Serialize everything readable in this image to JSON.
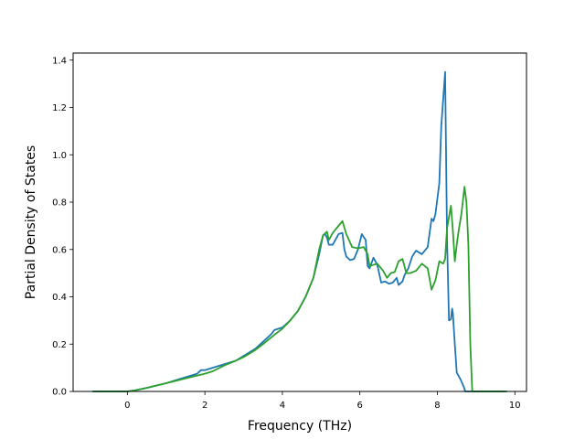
{
  "chart_data": {
    "type": "line",
    "title": "",
    "xlabel": "Frequency (THz)",
    "ylabel": "Partial Density of States",
    "xlim": [
      -1.4,
      10.3
    ],
    "ylim": [
      0.0,
      1.43
    ],
    "xticks": [
      0,
      2,
      4,
      6,
      8,
      10
    ],
    "yticks": [
      0.0,
      0.2,
      0.4,
      0.6,
      0.8,
      1.0,
      1.2,
      1.4
    ],
    "xtick_labels": [
      "0",
      "2",
      "4",
      "6",
      "8",
      "10"
    ],
    "ytick_labels": [
      "0.0",
      "0.2",
      "0.4",
      "0.6",
      "0.8",
      "1.0",
      "1.2",
      "1.4"
    ],
    "grid": false,
    "legend": false,
    "series": [
      {
        "color": "#1f77b4",
        "x": [
          -0.9,
          0.0,
          0.2,
          0.5,
          1.0,
          1.5,
          1.8,
          1.9,
          2.0,
          2.2,
          2.5,
          2.8,
          3.0,
          3.3,
          3.5,
          3.7,
          3.8,
          4.0,
          4.2,
          4.4,
          4.6,
          4.8,
          4.95,
          5.05,
          5.1,
          5.15,
          5.2,
          5.3,
          5.45,
          5.55,
          5.6,
          5.65,
          5.75,
          5.85,
          5.95,
          6.05,
          6.15,
          6.2,
          6.25,
          6.35,
          6.45,
          6.55,
          6.65,
          6.75,
          6.85,
          6.95,
          7.0,
          7.1,
          7.15,
          7.25,
          7.35,
          7.45,
          7.6,
          7.75,
          7.85,
          7.9,
          7.95,
          8.05,
          8.1,
          8.2,
          8.25,
          8.3,
          8.35,
          8.38,
          8.4,
          8.45,
          8.5,
          8.6,
          8.68,
          8.72,
          8.8,
          8.9,
          9.0,
          9.75
        ],
        "y": [
          0.0,
          0.0,
          0.005,
          0.015,
          0.035,
          0.06,
          0.075,
          0.09,
          0.09,
          0.1,
          0.115,
          0.13,
          0.15,
          0.18,
          0.21,
          0.24,
          0.26,
          0.27,
          0.3,
          0.34,
          0.4,
          0.48,
          0.58,
          0.66,
          0.665,
          0.65,
          0.62,
          0.62,
          0.665,
          0.67,
          0.6,
          0.57,
          0.555,
          0.56,
          0.6,
          0.665,
          0.64,
          0.53,
          0.52,
          0.565,
          0.535,
          0.46,
          0.465,
          0.455,
          0.46,
          0.48,
          0.45,
          0.465,
          0.49,
          0.52,
          0.57,
          0.595,
          0.58,
          0.61,
          0.73,
          0.72,
          0.75,
          0.88,
          1.12,
          1.35,
          0.64,
          0.3,
          0.305,
          0.35,
          0.33,
          0.2,
          0.08,
          0.05,
          0.02,
          0.0,
          0.0,
          0.0,
          0.0,
          0.0
        ]
      },
      {
        "color": "#2ca02c",
        "x": [
          -0.9,
          0.0,
          0.2,
          0.5,
          1.0,
          1.5,
          2.0,
          2.2,
          2.5,
          2.8,
          3.0,
          3.3,
          3.5,
          3.8,
          4.0,
          4.2,
          4.4,
          4.6,
          4.8,
          4.95,
          5.05,
          5.15,
          5.2,
          5.3,
          5.45,
          5.55,
          5.65,
          5.8,
          5.95,
          6.1,
          6.2,
          6.25,
          6.35,
          6.45,
          6.6,
          6.7,
          6.8,
          6.9,
          7.0,
          7.1,
          7.2,
          7.3,
          7.45,
          7.6,
          7.75,
          7.85,
          7.95,
          8.05,
          8.15,
          8.2,
          8.25,
          8.35,
          8.4,
          8.45,
          8.5,
          8.55,
          8.62,
          8.7,
          8.75,
          8.8,
          8.85,
          8.9,
          9.0,
          9.8
        ],
        "y": [
          0.0,
          0.0,
          0.005,
          0.015,
          0.035,
          0.055,
          0.075,
          0.085,
          0.11,
          0.13,
          0.145,
          0.175,
          0.2,
          0.24,
          0.265,
          0.3,
          0.34,
          0.4,
          0.48,
          0.6,
          0.66,
          0.675,
          0.64,
          0.67,
          0.7,
          0.72,
          0.665,
          0.61,
          0.605,
          0.61,
          0.58,
          0.53,
          0.535,
          0.54,
          0.51,
          0.48,
          0.5,
          0.505,
          0.55,
          0.56,
          0.5,
          0.5,
          0.51,
          0.54,
          0.52,
          0.43,
          0.47,
          0.55,
          0.54,
          0.56,
          0.69,
          0.785,
          0.68,
          0.55,
          0.62,
          0.68,
          0.75,
          0.865,
          0.8,
          0.62,
          0.2,
          0.0,
          0.0,
          0.0
        ]
      }
    ]
  }
}
